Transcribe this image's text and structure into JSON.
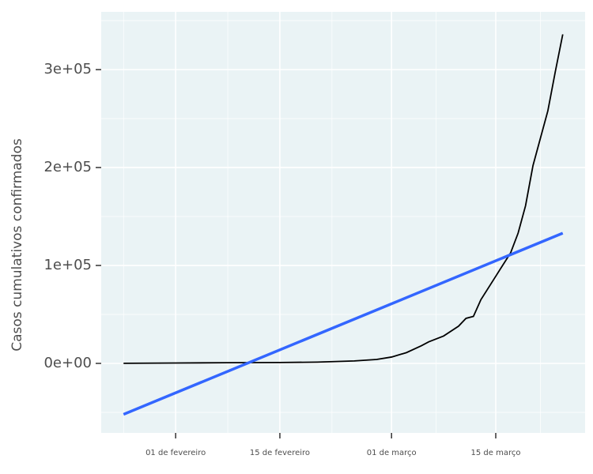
{
  "chart_data": {
    "type": "line",
    "y_label": "Casos cumulativos confirmados",
    "x": [
      "01-25",
      "02-01",
      "02-08",
      "02-15",
      "02-20",
      "02-25",
      "02-28",
      "03-01",
      "03-03",
      "03-05",
      "03-06",
      "03-08",
      "03-10",
      "03-11",
      "03-12",
      "03-13",
      "03-15",
      "03-17",
      "03-18",
      "03-19",
      "03-20",
      "03-21",
      "03-22",
      "03-23",
      "03-24"
    ],
    "values": [
      100,
      400,
      700,
      900,
      1300,
      2500,
      4000,
      6500,
      11000,
      18000,
      22000,
      28000,
      38000,
      46000,
      48000,
      65000,
      89000,
      113000,
      133000,
      161000,
      202000,
      230000,
      258000,
      298000,
      336000
    ],
    "color": "#000000",
    "fit": {
      "x": [
        "01-25",
        "03-24"
      ],
      "values": [
        -52000,
        133000
      ],
      "color": "#3366ff"
    },
    "xlim": [
      "01-22",
      "03-27"
    ],
    "xticks": [
      {
        "value": "02-01",
        "label": "01 de fevereiro"
      },
      {
        "value": "02-15",
        "label": "15 de fevereiro"
      },
      {
        "value": "03-01",
        "label": "01 de março"
      },
      {
        "value": "03-15",
        "label": "15 de março"
      }
    ],
    "ylim": [
      -71000,
      359000
    ],
    "yticks": [
      {
        "value": 0,
        "label": "0e+00"
      },
      {
        "value": 100000,
        "label": "1e+05"
      },
      {
        "value": 200000,
        "label": "2e+05"
      },
      {
        "value": 300000,
        "label": "3e+05"
      }
    ],
    "grid": true
  }
}
